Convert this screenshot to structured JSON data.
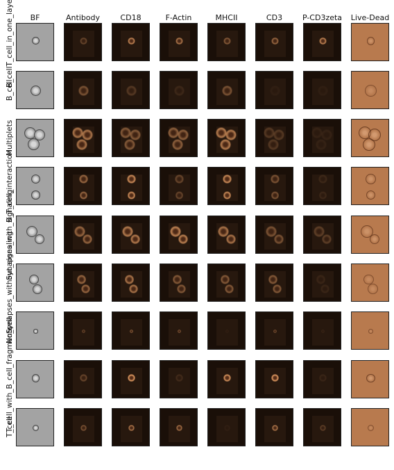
{
  "figure": {
    "columns": [
      "BF",
      "Antibody",
      "CD18",
      "F-Actin",
      "MHCII",
      "CD3",
      "P-CD3zeta",
      "Live-Dead"
    ],
    "rows": [
      "T_cell_in_one_layer",
      "B_cell",
      "Multiplets",
      "B_T_cell_interaction",
      "Synapses_with_signaling",
      "Synapses_without_signaling",
      "No_cell",
      "T_cell_with_B_cell_fragments",
      "T_cell"
    ],
    "row_label_display": [
      "B_cellT_cell_in_one_layer",
      "B_cell",
      "Multiplets",
      "B_T_cell_interaction",
      "Synapses_with_signaling",
      "Synapses_without_signaling",
      "No_cell",
      "T_cell_with_B_cell_fragments",
      "T_cell"
    ],
    "colors": {
      "bf_bg": "#a3a3a3",
      "fluor_bg": "#1a0f08",
      "fluor_inner": "#2a1a10",
      "fluor_cell": "#e8a066",
      "livedead_bg": "#b87a4e"
    }
  }
}
